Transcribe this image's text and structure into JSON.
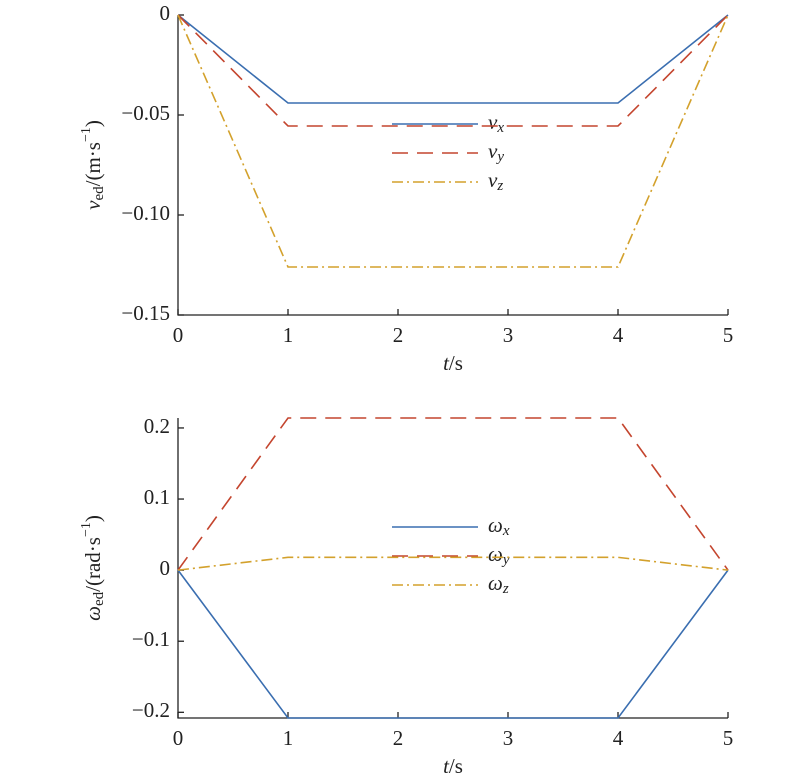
{
  "chart_data": [
    {
      "type": "line",
      "x": [
        0,
        1,
        4,
        5
      ],
      "xlim": [
        0,
        5
      ],
      "xticks": [
        0,
        1,
        2,
        3,
        4,
        5
      ],
      "ylim": [
        -0.15,
        0
      ],
      "yticks": [
        0,
        {
          "value": -0.05,
          "label": "−0.05"
        },
        {
          "value": -0.1,
          "label": "−0.10"
        },
        {
          "value": -0.15,
          "label": "−0.15"
        }
      ],
      "x_label": "t/s",
      "y_label": "ved/(m·s−1)",
      "legend": "center",
      "series": [
        {
          "name": "vx",
          "color": "#3a6eb0",
          "values": [
            0,
            -0.044,
            -0.044,
            0
          ]
        },
        {
          "name": "vy",
          "color": "#c4452e",
          "values": [
            0,
            -0.0555,
            -0.0555,
            0
          ]
        },
        {
          "name": "vz",
          "color": "#d3a12c",
          "values": [
            0,
            -0.126,
            -0.126,
            0
          ]
        }
      ]
    },
    {
      "type": "line",
      "x": [
        0,
        1,
        4,
        5
      ],
      "xlim": [
        0,
        5
      ],
      "xticks": [
        0,
        1,
        2,
        3,
        4,
        5
      ],
      "ylim": [
        -0.208,
        0.214
      ],
      "yticks": [
        0.2,
        0.1,
        0,
        {
          "value": -0.1,
          "label": "−0.1"
        },
        {
          "value": -0.2,
          "label": "−0.2"
        }
      ],
      "x_label": "t/s",
      "y_label": "ωed/(rad·s−1)",
      "legend": "center",
      "series": [
        {
          "name": "ωx",
          "color": "#3a6eb0",
          "values": [
            0,
            -0.208,
            -0.208,
            0
          ]
        },
        {
          "name": "ωy",
          "color": "#c4452e",
          "values": [
            0,
            0.214,
            0.214,
            0
          ]
        },
        {
          "name": "ωz",
          "color": "#d3a12c",
          "values": [
            0,
            0.018,
            0.018,
            0
          ]
        }
      ]
    }
  ]
}
